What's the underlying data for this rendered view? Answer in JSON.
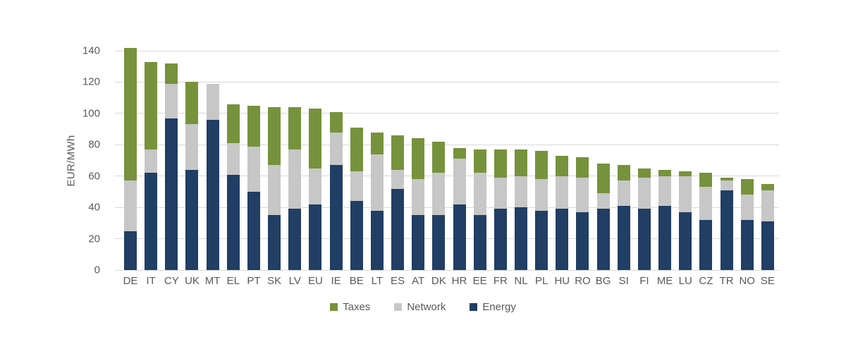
{
  "figure": {
    "background_color": "#FFFFFF",
    "text_color": "#595959",
    "grid_color": "#D9D9D9"
  },
  "chart_data": {
    "type": "bar",
    "stacked": true,
    "title": "",
    "xlabel": "",
    "ylabel": "EUR/MWh",
    "ylim": [
      0,
      140
    ],
    "yticks": [
      0,
      20,
      40,
      60,
      80,
      100,
      120,
      140
    ],
    "grid": true,
    "legend_position": "bottom",
    "categories": [
      "DE",
      "IT",
      "CY",
      "UK",
      "MT",
      "EL",
      "PT",
      "SK",
      "LV",
      "EU",
      "IE",
      "BE",
      "LT",
      "ES",
      "AT",
      "DK",
      "HR",
      "EE",
      "FR",
      "NL",
      "PL",
      "HU",
      "RO",
      "BG",
      "SI",
      "FI",
      "ME",
      "LU",
      "CZ",
      "TR",
      "NO",
      "SE"
    ],
    "series": [
      {
        "name": "Taxes",
        "color": "#77923C",
        "values": [
          85,
          56,
          13,
          27,
          0,
          25,
          26,
          37,
          27,
          38,
          13,
          28,
          14,
          22,
          26,
          20,
          7,
          15,
          18,
          17,
          18,
          13,
          13,
          19,
          10,
          6,
          4,
          3,
          9,
          2,
          10,
          4
        ]
      },
      {
        "name": "Network",
        "color": "#C7C7C7",
        "values": [
          32,
          15,
          22,
          29,
          23,
          20,
          29,
          32,
          38,
          23,
          21,
          19,
          36,
          12,
          23,
          27,
          29,
          27,
          20,
          20,
          20,
          21,
          22,
          10,
          16,
          20,
          19,
          23,
          21,
          6,
          16,
          20
        ]
      },
      {
        "name": "Energy",
        "color": "#213E64",
        "values": [
          25,
          62,
          97,
          64,
          96,
          61,
          50,
          35,
          39,
          42,
          67,
          44,
          38,
          52,
          35,
          35,
          42,
          35,
          39,
          40,
          38,
          39,
          37,
          39,
          41,
          39,
          41,
          37,
          32,
          51,
          32,
          31
        ]
      }
    ],
    "stack_order_bottom_to_top": [
      "Energy",
      "Network",
      "Taxes"
    ],
    "totals": [
      142,
      133,
      132,
      120,
      119,
      106,
      105,
      104,
      104,
      103,
      101,
      91,
      88,
      86,
      84,
      82,
      78,
      77,
      77,
      77,
      76,
      73,
      72,
      68,
      67,
      65,
      64,
      63,
      62,
      59,
      58,
      55
    ]
  }
}
